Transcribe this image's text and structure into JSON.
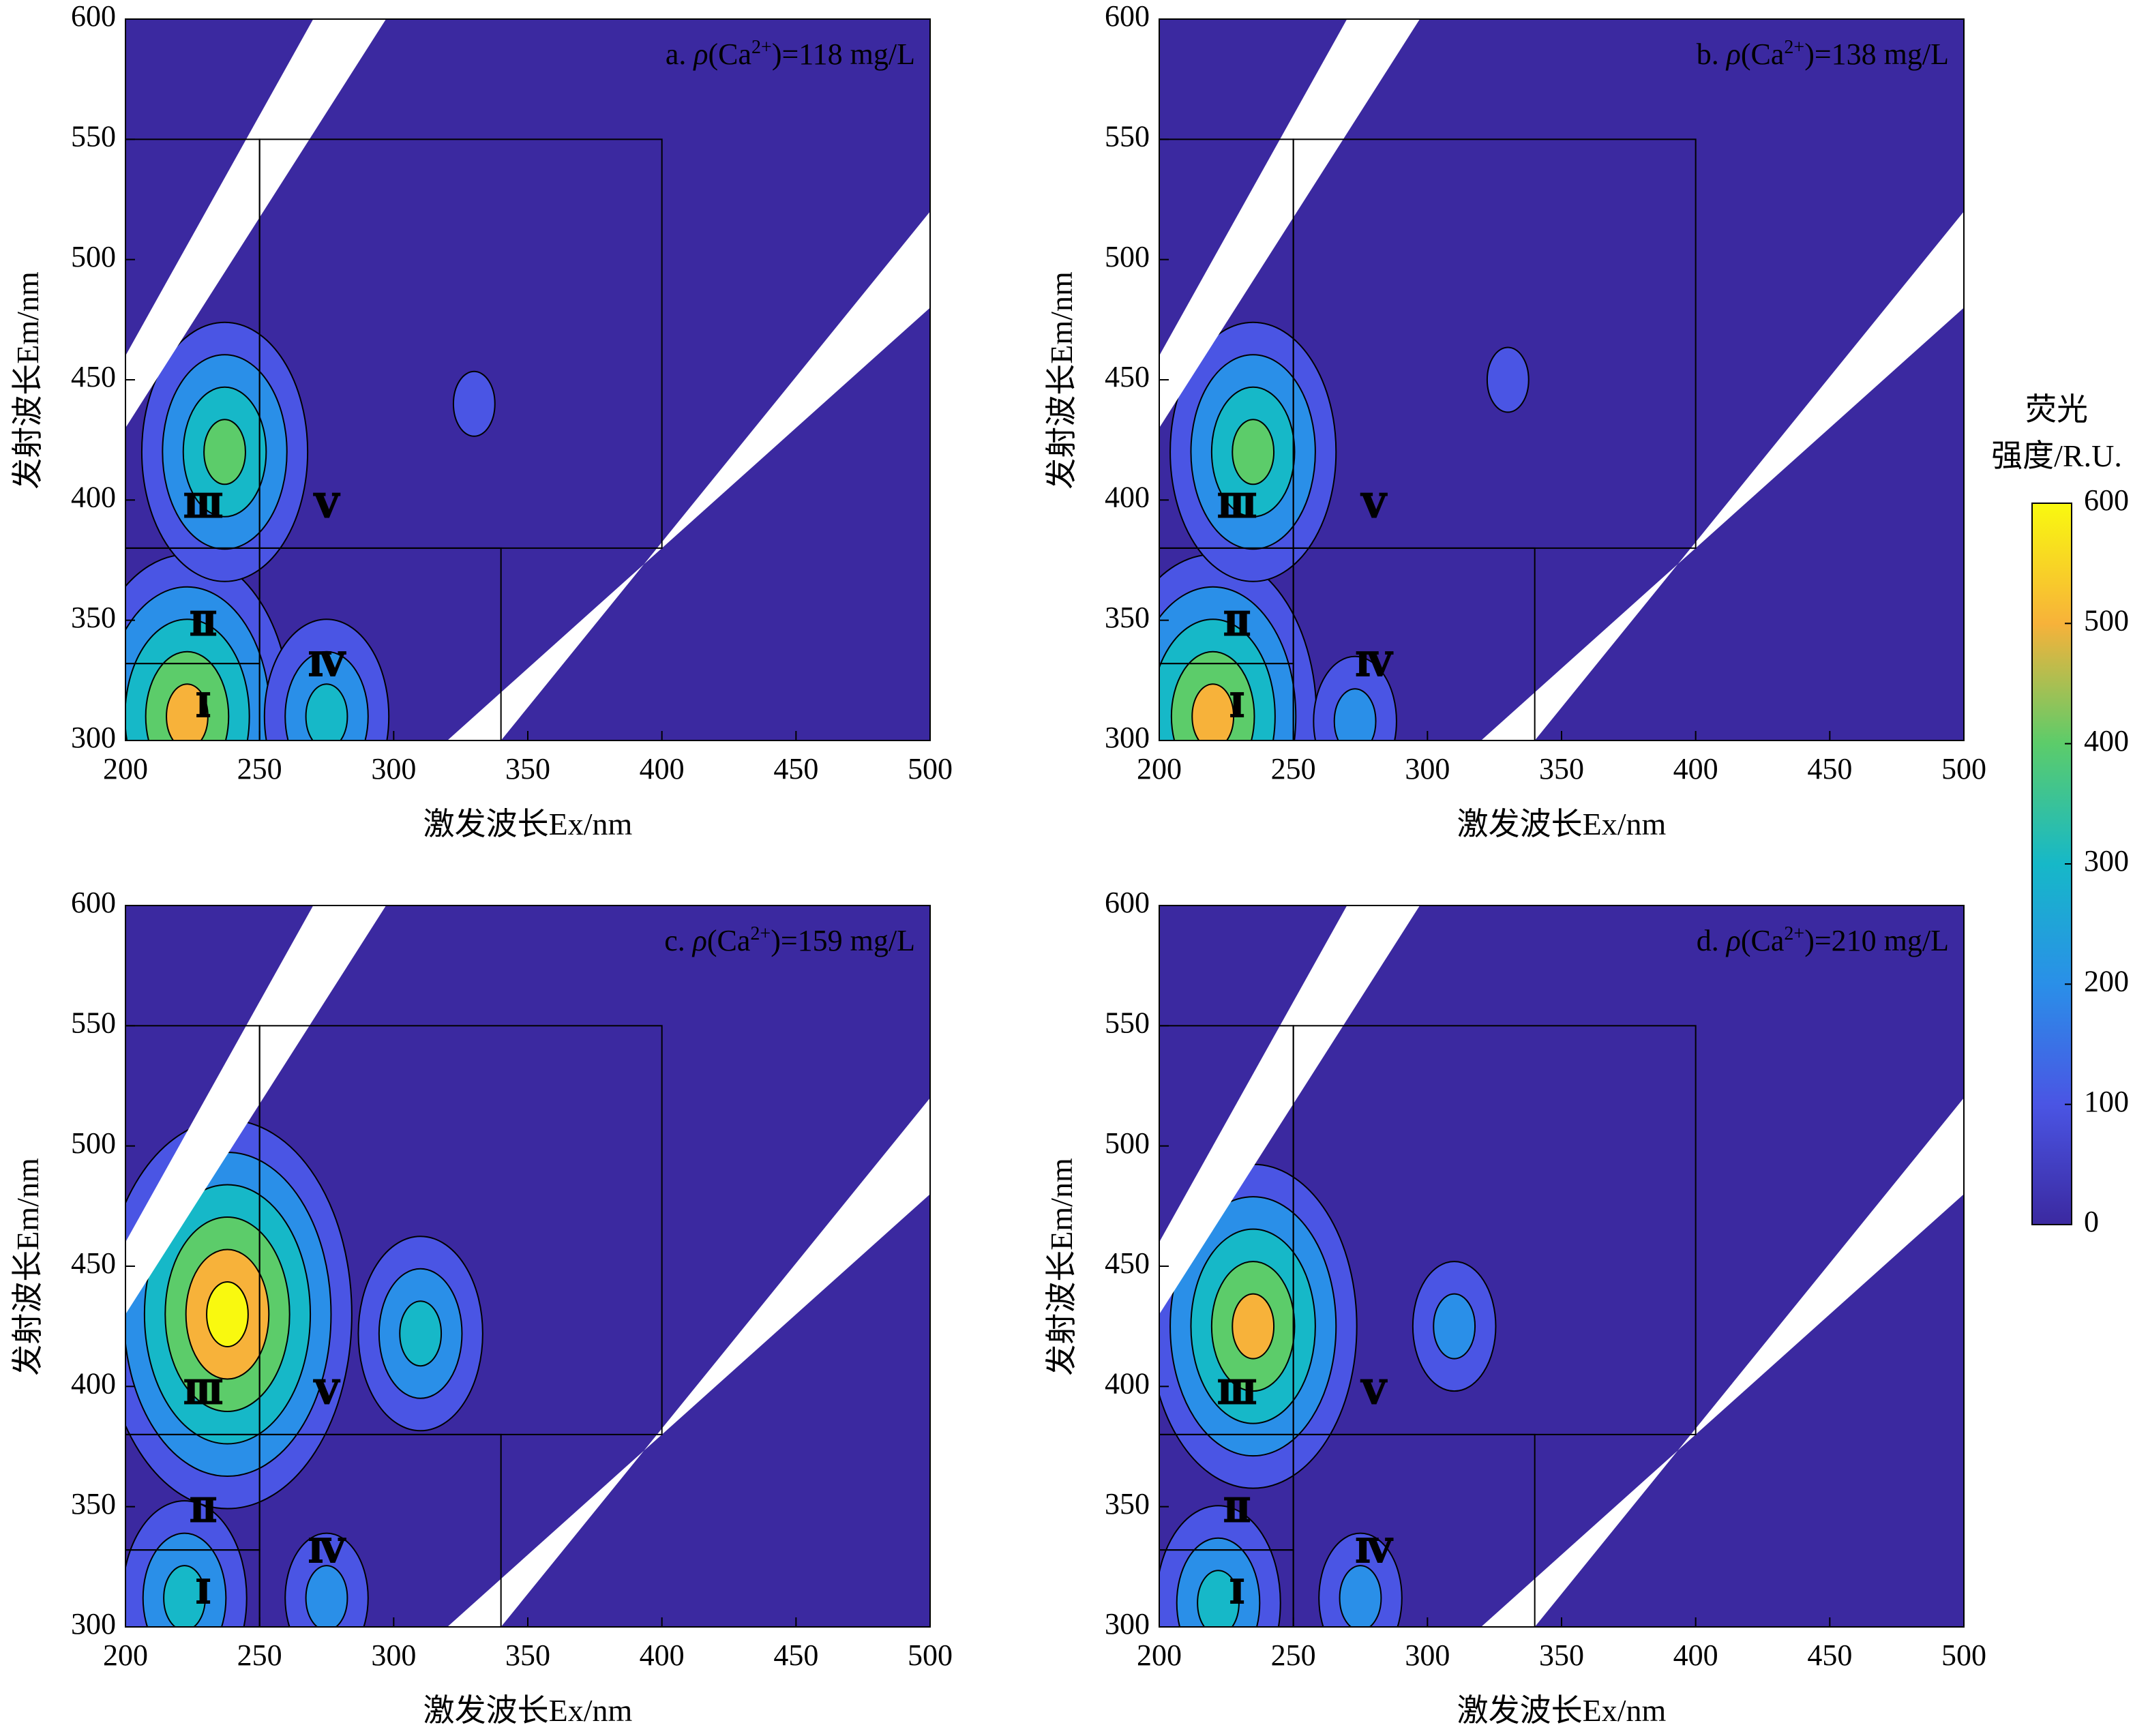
{
  "chart_data": [
    {
      "type": "heatmap",
      "panel_label": "a. ",
      "rho_symbol": "ρ",
      "condition": "(Ca",
      "ion_charge": "2+",
      "condition_value": ")=118 mg/L",
      "xlabel": "激发波长Ex/nm",
      "ylabel": "发射波长Em/nm",
      "xlim": [
        200,
        500
      ],
      "ylim": [
        300,
        600
      ],
      "xticks": [
        200,
        250,
        300,
        350,
        400,
        450,
        500
      ],
      "yticks": [
        300,
        350,
        400,
        450,
        500,
        550,
        600
      ],
      "peaks": [
        {
          "x": 223,
          "y": 310,
          "value": 520
        },
        {
          "x": 237,
          "y": 420,
          "value": 380
        },
        {
          "x": 275,
          "y": 310,
          "value": 250
        },
        {
          "x": 330,
          "y": 440,
          "value": 120
        }
      ],
      "regions": [
        {
          "label": "Ⅰ",
          "x": 229,
          "y": 313
        },
        {
          "label": "Ⅱ",
          "x": 229,
          "y": 347
        },
        {
          "label": "Ⅲ",
          "x": 229,
          "y": 396
        },
        {
          "label": "Ⅳ",
          "x": 275,
          "y": 330
        },
        {
          "label": "Ⅴ",
          "x": 275,
          "y": 396
        }
      ]
    },
    {
      "type": "heatmap",
      "panel_label": "b. ",
      "rho_symbol": "ρ",
      "condition": "(Ca",
      "ion_charge": "2+",
      "condition_value": ")=138 mg/L",
      "xlabel": "激发波长Ex/nm",
      "ylabel": "发射波长Em/nm",
      "xlim": [
        200,
        500
      ],
      "ylim": [
        300,
        600
      ],
      "xticks": [
        200,
        250,
        300,
        350,
        400,
        450,
        500
      ],
      "yticks": [
        300,
        350,
        400,
        450,
        500,
        550,
        600
      ],
      "peaks": [
        {
          "x": 220,
          "y": 310,
          "value": 500
        },
        {
          "x": 235,
          "y": 420,
          "value": 360
        },
        {
          "x": 273,
          "y": 308,
          "value": 220
        },
        {
          "x": 330,
          "y": 450,
          "value": 90
        }
      ],
      "regions": [
        {
          "label": "Ⅰ",
          "x": 229,
          "y": 313
        },
        {
          "label": "Ⅱ",
          "x": 229,
          "y": 347
        },
        {
          "label": "Ⅲ",
          "x": 229,
          "y": 396
        },
        {
          "label": "Ⅳ",
          "x": 280,
          "y": 330
        },
        {
          "label": "Ⅴ",
          "x": 280,
          "y": 396
        }
      ]
    },
    {
      "type": "heatmap",
      "panel_label": "c. ",
      "rho_symbol": "ρ",
      "condition": "(Ca",
      "ion_charge": "2+",
      "condition_value": ")=159 mg/L",
      "xlabel": "激发波长Ex/nm",
      "ylabel": "发射波长Em/nm",
      "xlim": [
        200,
        500
      ],
      "ylim": [
        300,
        600
      ],
      "xticks": [
        200,
        250,
        300,
        350,
        400,
        450,
        500
      ],
      "yticks": [
        300,
        350,
        400,
        450,
        500,
        550,
        600
      ],
      "peaks": [
        {
          "x": 238,
          "y": 430,
          "value": 600
        },
        {
          "x": 222,
          "y": 312,
          "value": 300
        },
        {
          "x": 275,
          "y": 312,
          "value": 200
        },
        {
          "x": 310,
          "y": 422,
          "value": 260
        }
      ],
      "regions": [
        {
          "label": "Ⅰ",
          "x": 229,
          "y": 313
        },
        {
          "label": "Ⅱ",
          "x": 229,
          "y": 347
        },
        {
          "label": "Ⅲ",
          "x": 229,
          "y": 396
        },
        {
          "label": "Ⅳ",
          "x": 275,
          "y": 330
        },
        {
          "label": "Ⅴ",
          "x": 275,
          "y": 396
        }
      ]
    },
    {
      "type": "heatmap",
      "panel_label": "d. ",
      "rho_symbol": "ρ",
      "condition": "(Ca",
      "ion_charge": "2+",
      "condition_value": ")=210 mg/L",
      "xlabel": "激发波长Ex/nm",
      "ylabel": "发射波长Em/nm",
      "xlim": [
        200,
        500
      ],
      "ylim": [
        300,
        600
      ],
      "xticks": [
        200,
        250,
        300,
        350,
        400,
        450,
        500
      ],
      "yticks": [
        300,
        350,
        400,
        450,
        500,
        550,
        600
      ],
      "peaks": [
        {
          "x": 235,
          "y": 425,
          "value": 520
        },
        {
          "x": 222,
          "y": 310,
          "value": 300
        },
        {
          "x": 275,
          "y": 312,
          "value": 170
        },
        {
          "x": 310,
          "y": 425,
          "value": 220
        }
      ],
      "regions": [
        {
          "label": "Ⅰ",
          "x": 229,
          "y": 313
        },
        {
          "label": "Ⅱ",
          "x": 229,
          "y": 347
        },
        {
          "label": "Ⅲ",
          "x": 229,
          "y": 396
        },
        {
          "label": "Ⅳ",
          "x": 280,
          "y": 330
        },
        {
          "label": "Ⅴ",
          "x": 280,
          "y": 396
        }
      ]
    }
  ],
  "colorbar": {
    "title_line1": "荧光",
    "title_line2": "强度/R.U.",
    "ticks": [
      0,
      100,
      200,
      300,
      400,
      500,
      600
    ],
    "range": [
      0,
      600
    ],
    "colors": [
      "#3b29a0",
      "#4a55e4",
      "#2a8fe8",
      "#16b8c8",
      "#5ccc6a",
      "#f7b23a",
      "#f9f90f"
    ]
  }
}
